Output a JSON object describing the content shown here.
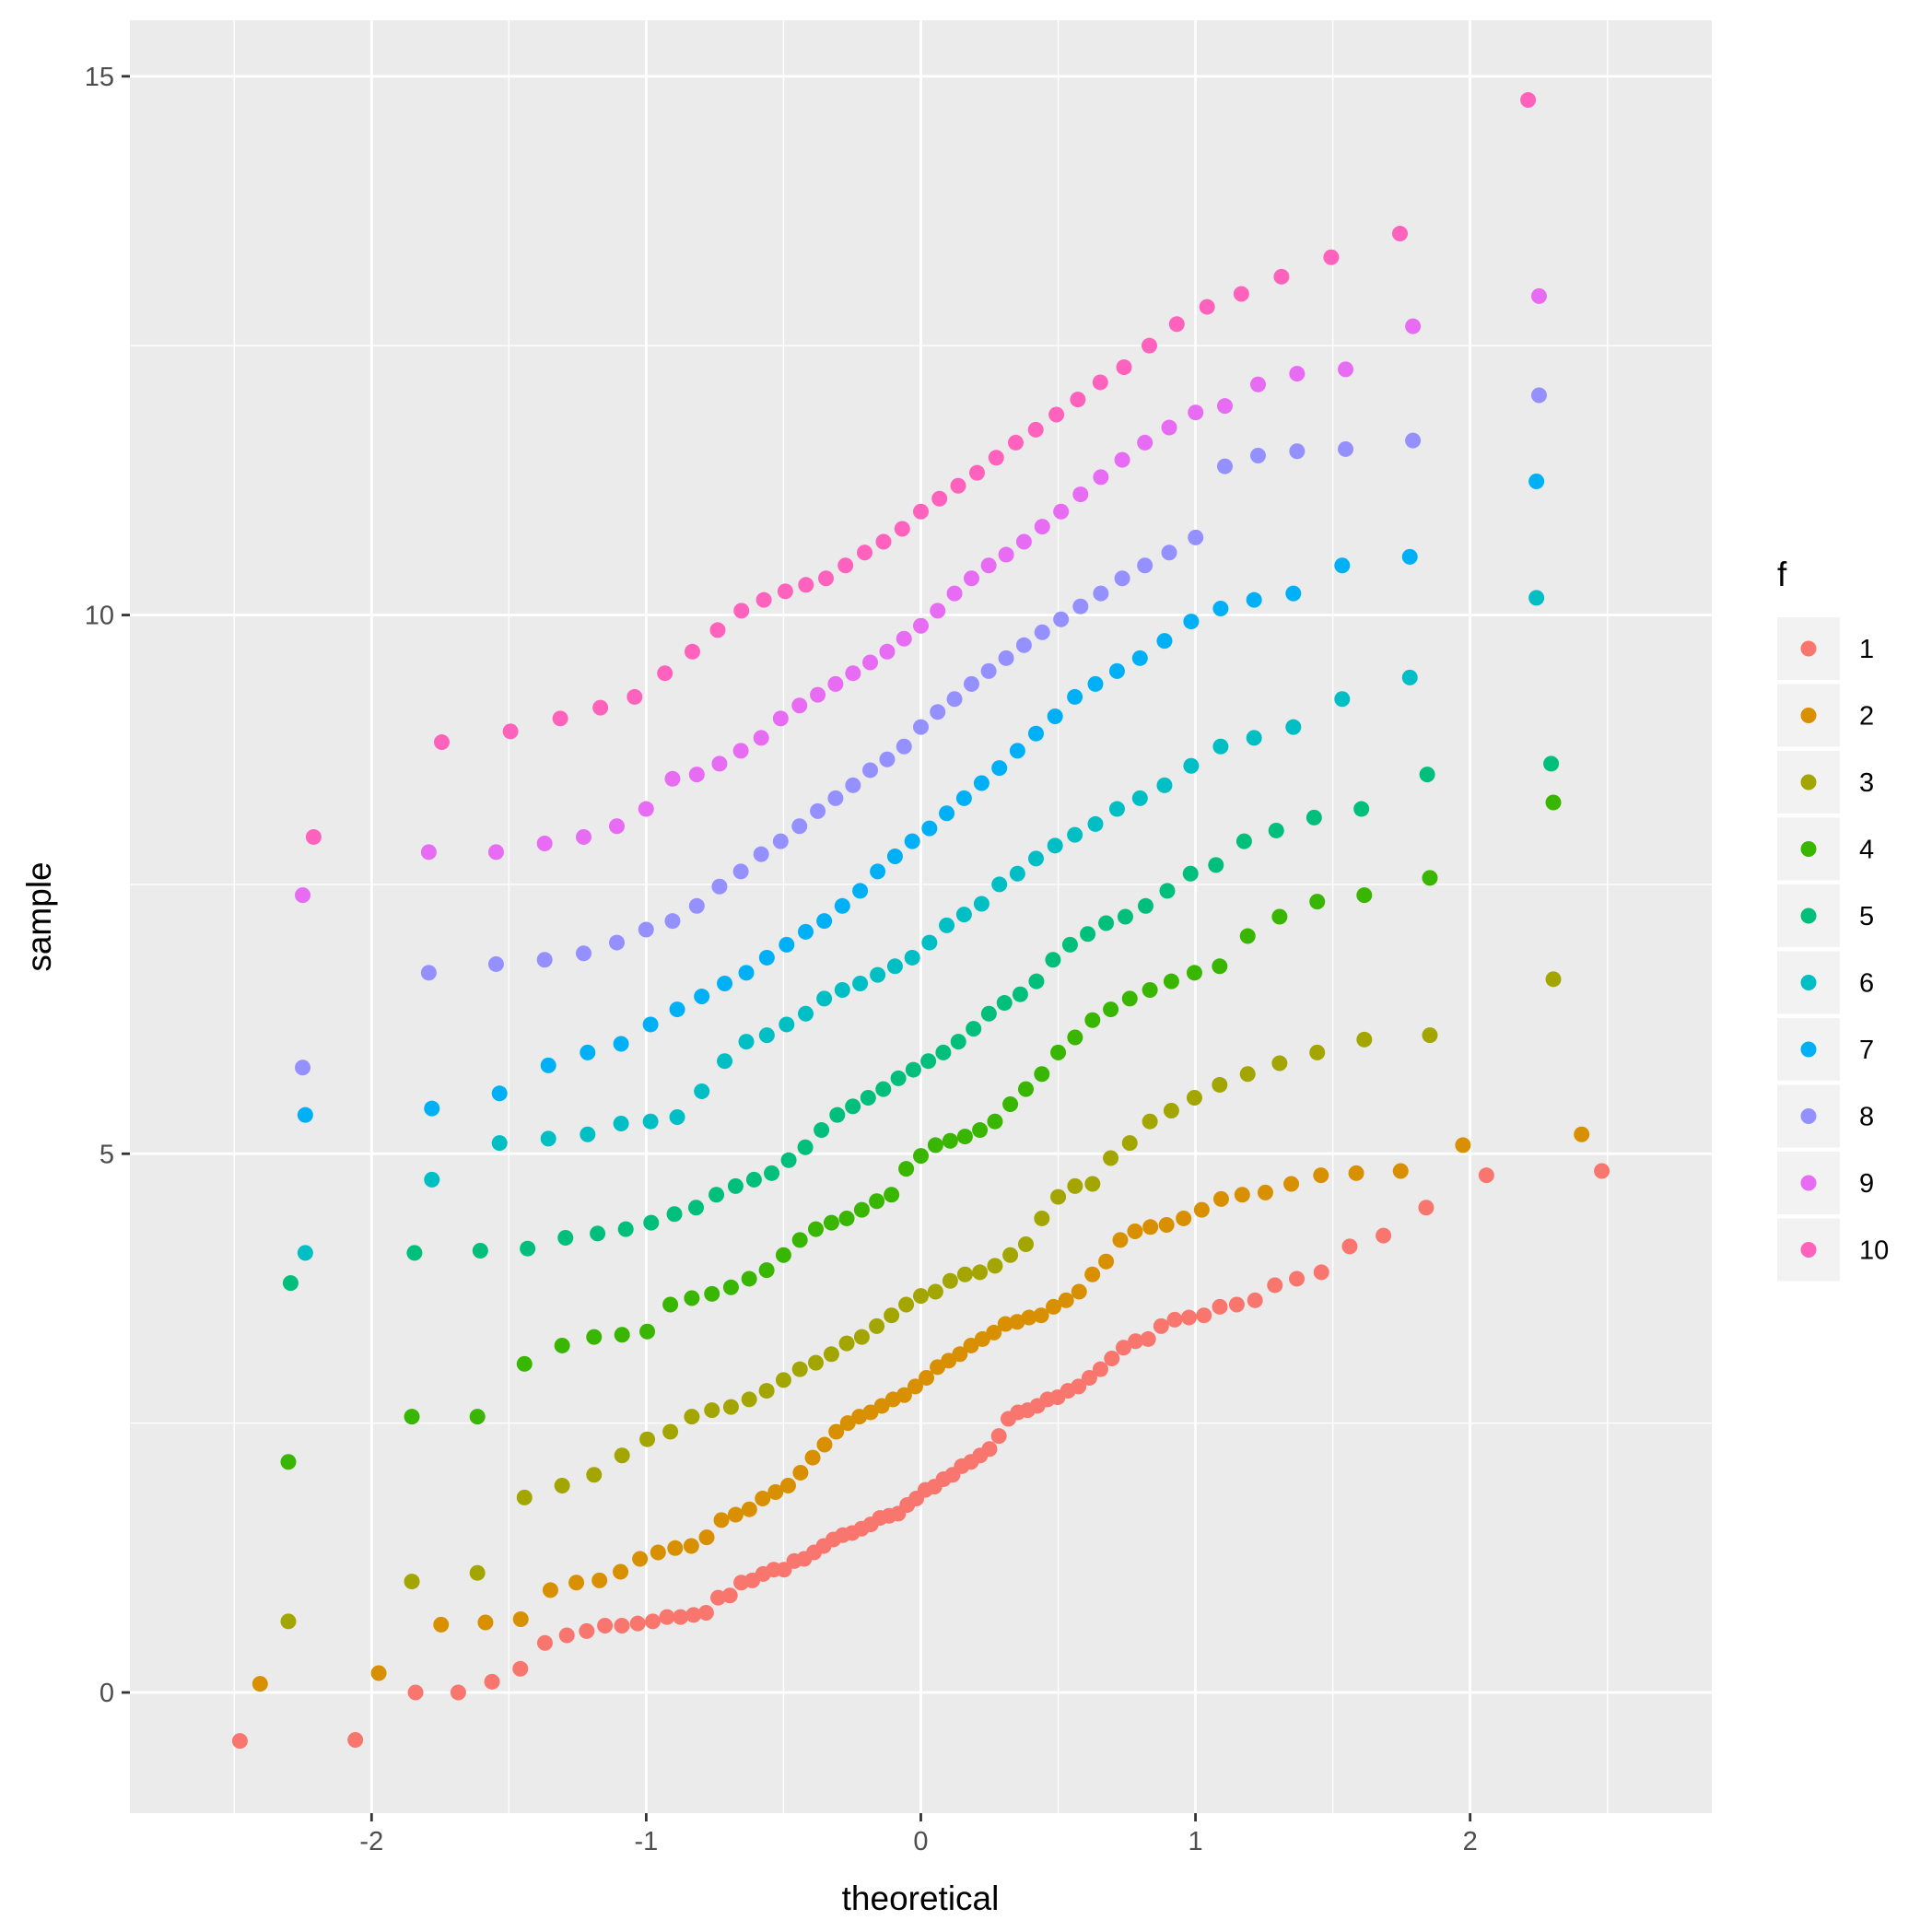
{
  "chart_data": {
    "type": "scatter",
    "title": "",
    "xlabel": "theoretical",
    "ylabel": "sample",
    "xlim": [
      -2.88,
      2.88
    ],
    "ylim": [
      -1.12,
      15.52
    ],
    "x_ticks": [
      -2,
      -1,
      0,
      1,
      2
    ],
    "x_tick_labels": [
      "-2",
      "-1",
      "0",
      "1",
      "2"
    ],
    "y_ticks": [
      0,
      5,
      10,
      15
    ],
    "y_tick_labels": [
      "0",
      "5",
      "10",
      "15"
    ],
    "grid": true,
    "legend": {
      "title": "f",
      "position": "right",
      "entries": [
        "1",
        "2",
        "3",
        "4",
        "5",
        "6",
        "7",
        "8",
        "9",
        "10"
      ]
    },
    "series": [
      {
        "name": "1",
        "color": "#F8766D",
        "values": [
          -0.45,
          -0.44,
          0.0,
          0.0,
          0.1,
          0.22,
          0.46,
          0.53,
          0.57,
          0.62,
          0.62,
          0.64,
          0.66,
          0.7,
          0.7,
          0.72,
          0.74,
          0.88,
          0.9,
          1.02,
          1.04,
          1.1,
          1.14,
          1.14,
          1.22,
          1.24,
          1.3,
          1.36,
          1.42,
          1.46,
          1.48,
          1.52,
          1.56,
          1.62,
          1.64,
          1.66,
          1.74,
          1.8,
          1.88,
          1.91,
          1.98,
          2.02,
          2.1,
          2.14,
          2.2,
          2.26,
          2.38,
          2.54,
          2.6,
          2.62,
          2.66,
          2.72,
          2.74,
          2.8,
          2.84,
          2.92,
          3.0,
          3.1,
          3.2,
          3.26,
          3.28,
          3.4,
          3.46,
          3.48,
          3.5,
          3.58,
          3.6,
          3.64,
          3.78,
          3.84,
          3.9,
          4.14,
          4.24,
          4.5,
          4.8,
          4.84
        ]
      },
      {
        "name": "2",
        "color": "#D89000",
        "values": [
          0.08,
          0.18,
          0.63,
          0.65,
          0.68,
          0.95,
          1.02,
          1.04,
          1.12,
          1.24,
          1.3,
          1.34,
          1.36,
          1.44,
          1.6,
          1.65,
          1.7,
          1.8,
          1.86,
          1.92,
          2.04,
          2.18,
          2.3,
          2.42,
          2.5,
          2.56,
          2.6,
          2.66,
          2.72,
          2.76,
          2.84,
          2.92,
          3.02,
          3.08,
          3.14,
          3.22,
          3.28,
          3.34,
          3.42,
          3.44,
          3.48,
          3.5,
          3.58,
          3.64,
          3.72,
          3.88,
          4.0,
          4.2,
          4.28,
          4.32,
          4.34,
          4.4,
          4.48,
          4.58,
          4.62,
          4.64,
          4.72,
          4.8,
          4.82,
          4.84,
          5.08,
          5.18
        ]
      },
      {
        "name": "3",
        "color": "#A3A500",
        "values": [
          0.66,
          1.03,
          1.11,
          1.81,
          1.92,
          2.02,
          2.2,
          2.35,
          2.42,
          2.56,
          2.62,
          2.65,
          2.72,
          2.8,
          2.9,
          3.0,
          3.06,
          3.14,
          3.24,
          3.3,
          3.4,
          3.5,
          3.6,
          3.68,
          3.72,
          3.82,
          3.88,
          3.9,
          3.96,
          4.06,
          4.16,
          4.4,
          4.6,
          4.7,
          4.72,
          4.96,
          5.1,
          5.3,
          5.4,
          5.52,
          5.64,
          5.74,
          5.84,
          5.94,
          6.06,
          6.1,
          6.62
        ]
      },
      {
        "name": "4",
        "color": "#39B600",
        "values": [
          2.14,
          2.56,
          2.56,
          3.05,
          3.22,
          3.3,
          3.32,
          3.35,
          3.6,
          3.66,
          3.7,
          3.76,
          3.84,
          3.92,
          4.06,
          4.2,
          4.3,
          4.36,
          4.4,
          4.48,
          4.56,
          4.62,
          4.86,
          4.98,
          5.08,
          5.12,
          5.16,
          5.22,
          5.3,
          5.46,
          5.6,
          5.74,
          5.94,
          6.08,
          6.24,
          6.34,
          6.44,
          6.52,
          6.6,
          6.68,
          6.74,
          7.02,
          7.2,
          7.34,
          7.4,
          7.56,
          8.26
        ]
      },
      {
        "name": "5",
        "color": "#00BF7D",
        "values": [
          3.8,
          4.08,
          4.1,
          4.12,
          4.22,
          4.26,
          4.3,
          4.36,
          4.44,
          4.5,
          4.62,
          4.7,
          4.76,
          4.82,
          4.94,
          5.06,
          5.22,
          5.36,
          5.44,
          5.52,
          5.6,
          5.7,
          5.78,
          5.86,
          5.94,
          6.04,
          6.16,
          6.3,
          6.4,
          6.48,
          6.6,
          6.8,
          6.94,
          7.04,
          7.14,
          7.2,
          7.3,
          7.44,
          7.6,
          7.68,
          7.9,
          8.0,
          8.12,
          8.2,
          8.52,
          8.62
        ]
      },
      {
        "name": "6",
        "color": "#00BFC4",
        "values": [
          4.08,
          4.76,
          5.1,
          5.14,
          5.18,
          5.28,
          5.3,
          5.34,
          5.58,
          5.86,
          6.04,
          6.1,
          6.2,
          6.3,
          6.44,
          6.52,
          6.58,
          6.66,
          6.74,
          6.82,
          6.96,
          7.12,
          7.22,
          7.32,
          7.5,
          7.6,
          7.74,
          7.86,
          7.96,
          8.06,
          8.2,
          8.3,
          8.42,
          8.6,
          8.78,
          8.86,
          8.96,
          9.22,
          9.42,
          10.16
        ]
      },
      {
        "name": "7",
        "color": "#00B0F6",
        "values": [
          5.36,
          5.42,
          5.56,
          5.82,
          5.94,
          6.02,
          6.2,
          6.34,
          6.46,
          6.58,
          6.68,
          6.82,
          6.94,
          7.06,
          7.16,
          7.3,
          7.44,
          7.62,
          7.76,
          7.9,
          8.02,
          8.16,
          8.3,
          8.44,
          8.58,
          8.74,
          8.9,
          9.06,
          9.24,
          9.36,
          9.48,
          9.6,
          9.76,
          9.94,
          10.06,
          10.14,
          10.2,
          10.46,
          10.54,
          11.24
        ]
      },
      {
        "name": "8",
        "color": "#9590FF",
        "values": [
          5.8,
          6.68,
          6.76,
          6.8,
          6.86,
          6.96,
          7.08,
          7.16,
          7.3,
          7.48,
          7.62,
          7.78,
          7.9,
          8.04,
          8.18,
          8.3,
          8.42,
          8.56,
          8.66,
          8.78,
          8.96,
          9.1,
          9.22,
          9.36,
          9.48,
          9.6,
          9.72,
          9.84,
          9.96,
          10.08,
          10.2,
          10.34,
          10.46,
          10.58,
          10.72,
          11.38,
          11.48,
          11.52,
          11.54,
          11.62,
          12.04
        ]
      },
      {
        "name": "9",
        "color": "#E76BF3",
        "values": [
          7.4,
          7.8,
          7.8,
          7.88,
          7.94,
          8.04,
          8.2,
          8.48,
          8.52,
          8.62,
          8.74,
          8.86,
          9.04,
          9.16,
          9.26,
          9.36,
          9.46,
          9.56,
          9.66,
          9.78,
          9.9,
          10.04,
          10.2,
          10.34,
          10.46,
          10.56,
          10.68,
          10.82,
          10.96,
          11.12,
          11.28,
          11.44,
          11.6,
          11.74,
          11.88,
          11.94,
          12.14,
          12.24,
          12.28,
          12.68,
          12.96
        ]
      },
      {
        "name": "10",
        "color": "#FF62BC",
        "values": [
          7.94,
          8.82,
          8.92,
          9.04,
          9.14,
          9.24,
          9.46,
          9.66,
          9.86,
          10.04,
          10.14,
          10.22,
          10.28,
          10.34,
          10.46,
          10.58,
          10.68,
          10.8,
          10.96,
          11.08,
          11.2,
          11.32,
          11.46,
          11.6,
          11.72,
          11.86,
          12.0,
          12.16,
          12.3,
          12.5,
          12.7,
          12.86,
          12.98,
          13.14,
          13.32,
          13.54,
          14.78
        ]
      }
    ]
  }
}
